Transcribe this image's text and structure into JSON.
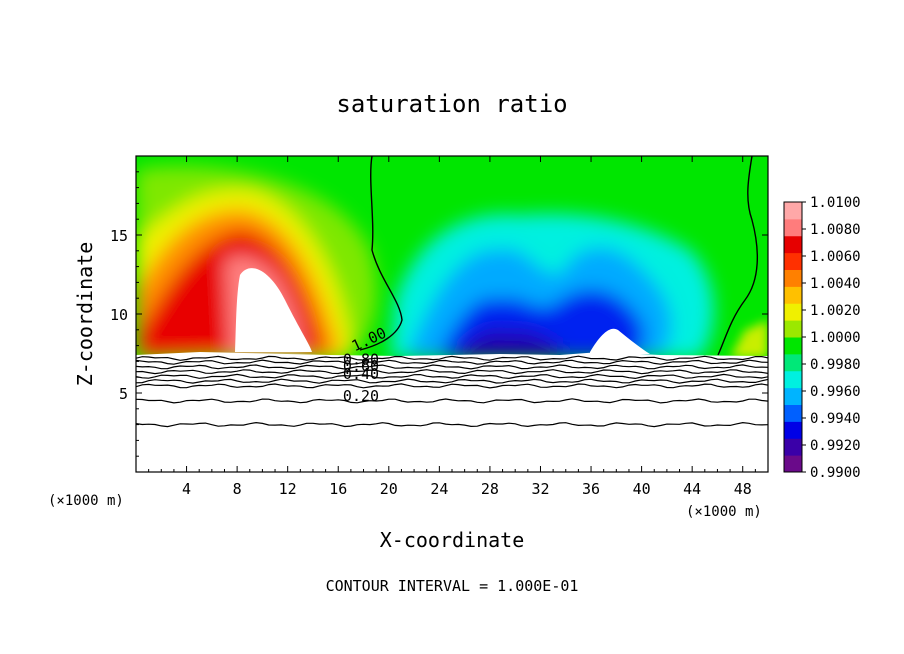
{
  "chart_data": {
    "type": "heatmap",
    "title": "saturation ratio",
    "xlabel": "X-coordinate",
    "ylabel": "Z-coordinate",
    "x_unit_left": "(×1000 m)",
    "x_unit_right": "(×1000 m)",
    "footer": "CONTOUR INTERVAL = 1.000E-01",
    "xlim": [
      0,
      50
    ],
    "ylim": [
      0,
      20
    ],
    "x_ticks": [
      4,
      8,
      12,
      16,
      20,
      24,
      28,
      32,
      36,
      40,
      44,
      48
    ],
    "x_tick_labels": [
      "4",
      "8",
      "12",
      "16",
      "20",
      "24",
      "28",
      "32",
      "36",
      "40",
      "44",
      "48"
    ],
    "y_ticks": [
      5,
      10,
      15
    ],
    "y_tick_labels": [
      "5",
      "10",
      "15"
    ],
    "colorbar": {
      "min": 0.99,
      "max": 1.01,
      "labels": [
        "1.0100",
        "1.0080",
        "1.0060",
        "1.0040",
        "1.0020",
        "1.0000",
        "0.9980",
        "0.9960",
        "0.9940",
        "0.9920",
        "0.9900"
      ],
      "colors": [
        "#6a0a8a",
        "#3a00a8",
        "#0000e6",
        "#0060ff",
        "#00b4ff",
        "#00f0e0",
        "#00e878",
        "#00e600",
        "#9be800",
        "#f0f000",
        "#ffc000",
        "#ff8000",
        "#ff3000",
        "#e60000",
        "#ff7c7c",
        "#ffa8a8"
      ]
    },
    "contour_labels": [
      {
        "text": "1.00",
        "x": 18.6,
        "y": 8.1
      },
      {
        "text": "0.80",
        "x": 17.8,
        "y": 6.8
      },
      {
        "text": "0.60",
        "x": 17.8,
        "y": 6.4
      },
      {
        "text": "0.40",
        "x": 17.8,
        "y": 5.9
      },
      {
        "text": "0.20",
        "x": 17.8,
        "y": 4.5
      }
    ],
    "contour_levels_below_cloud_base_z": [
      7.2,
      6.95,
      6.65,
      6.35,
      6.05,
      5.75,
      5.45,
      4.5,
      3.0
    ]
  }
}
